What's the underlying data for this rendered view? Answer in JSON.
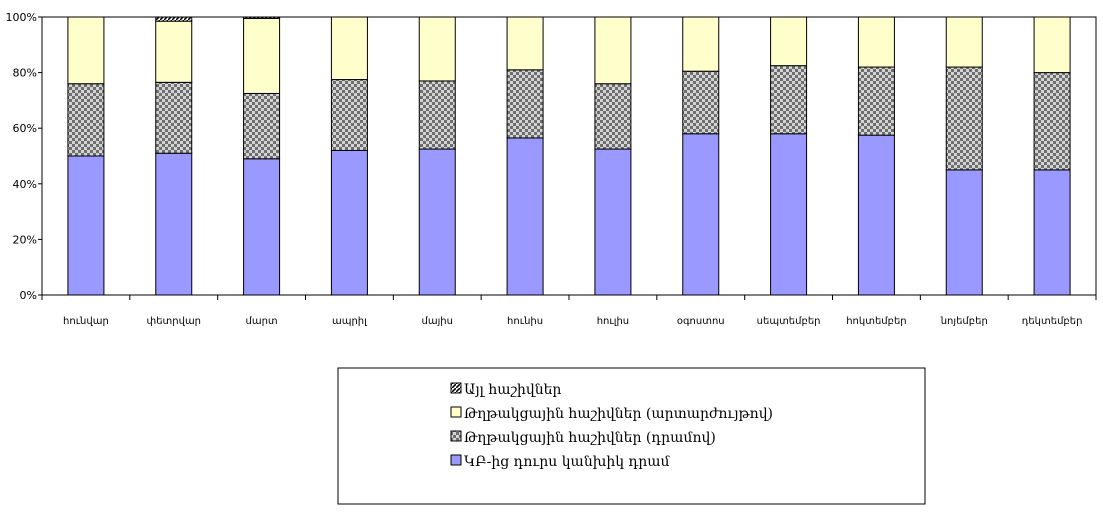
{
  "chart_data": {
    "type": "bar",
    "stacked": true,
    "percent": true,
    "categories": [
      "հունվար",
      "փետրվար",
      "մարտ",
      "ապրիլ",
      "մայիս",
      "հունիս",
      "հուլիս",
      "օգոստոս",
      "սեպտեմբեր",
      "հոկտեմբեր",
      "նոյեմբեր",
      "դեկտեմբեր"
    ],
    "y_ticks": [
      "0%",
      "20%",
      "40%",
      "60%",
      "80%",
      "100%"
    ],
    "ylim": [
      0,
      100
    ],
    "grid": false,
    "legend_position": "bottom",
    "series": [
      {
        "name": "ԿԲ-ից դուրս կանխիկ դրամ",
        "color": "#9999ff",
        "pattern": "solid",
        "values": [
          50,
          51,
          49,
          52,
          52.5,
          56.5,
          52.5,
          58,
          58,
          57.5,
          45,
          45
        ]
      },
      {
        "name": "Թղթակցային հաշիվներ (դրամով)",
        "color": "#9a9a9a",
        "pattern": "checker",
        "values": [
          26,
          25.5,
          23.5,
          25.5,
          24.5,
          24.5,
          23.5,
          22.5,
          24.5,
          24.5,
          37,
          35
        ]
      },
      {
        "name": "Թղթակցային հաշիվներ (արտարժույթով)",
        "color": "#ffffcc",
        "pattern": "solid",
        "values": [
          24,
          22,
          27,
          22.5,
          23,
          19,
          24,
          19.5,
          17.5,
          18,
          18,
          20
        ]
      },
      {
        "name": "Այլ հաշիվներ",
        "color": "#000000",
        "pattern": "diagonal",
        "values": [
          0,
          1.5,
          0.5,
          0,
          0,
          0,
          0,
          0,
          0,
          0,
          0,
          0
        ]
      }
    ]
  }
}
